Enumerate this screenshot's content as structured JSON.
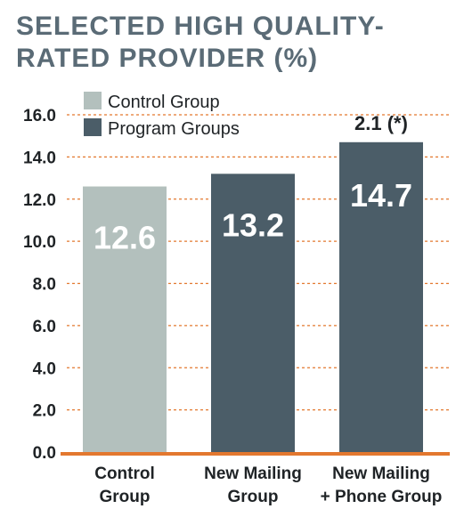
{
  "colors": {
    "control": "#b3c0bd",
    "program": "#4b5d68",
    "grid": "#e3782f",
    "baseline": "#e3782f",
    "title": "#5a6b76",
    "text": "#1f2326"
  },
  "chart_data": {
    "type": "bar",
    "title": "SELECTED HIGH QUALITY-RATED PROVIDER (%)",
    "xlabel": "",
    "ylabel": "",
    "ylim": [
      0,
      16
    ],
    "yticks": [
      "0.0",
      "2.0",
      "4.0",
      "6.0",
      "8.0",
      "10.0",
      "12.0",
      "14.0",
      "16.0"
    ],
    "grid": true,
    "legend": {
      "placement": "top-left",
      "entries": [
        {
          "label": "Control Group",
          "color_key": "control"
        },
        {
          "label": "Program Groups",
          "color_key": "program"
        }
      ]
    },
    "categories": [
      [
        "Control",
        "Group"
      ],
      [
        "New Mailing",
        "Group"
      ],
      [
        "New Mailing",
        "+ Phone Group"
      ]
    ],
    "values": [
      12.6,
      13.2,
      14.7
    ],
    "value_labels": [
      "12.6",
      "13.2",
      "14.7"
    ],
    "bar_groups": [
      "control",
      "program",
      "program"
    ],
    "annotations": [
      {
        "bar_index": 2,
        "text": "2.1 (*)"
      }
    ]
  }
}
